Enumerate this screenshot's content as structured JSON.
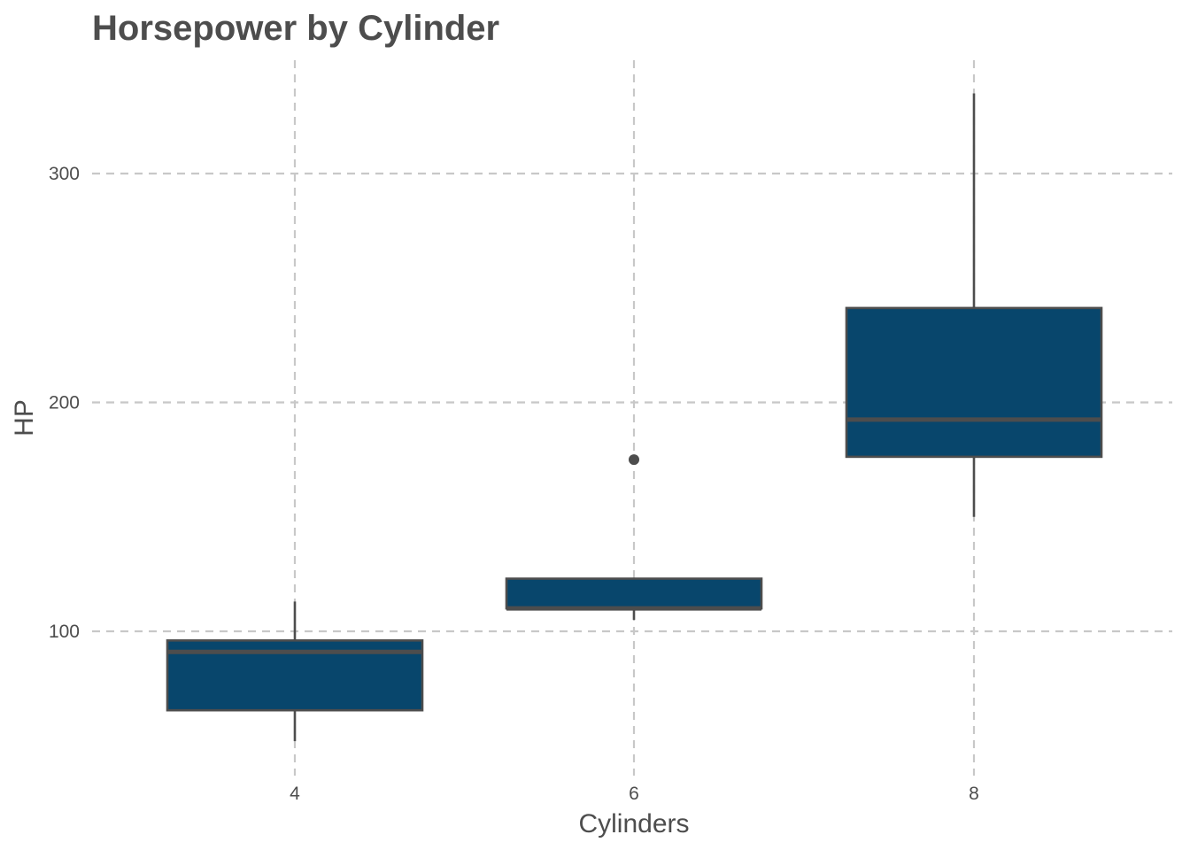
{
  "chart_data": {
    "type": "boxplot",
    "title": "Horsepower by Cylinder",
    "xlabel": "Cylinders",
    "ylabel": "HP",
    "categories": [
      "4",
      "6",
      "8"
    ],
    "boxes": [
      {
        "category": "4",
        "whisker_low": 52,
        "q1": 65.5,
        "median": 91,
        "q3": 96,
        "whisker_high": 113,
        "outliers": []
      },
      {
        "category": "6",
        "whisker_low": 105,
        "q1": 110,
        "median": 110,
        "q3": 123,
        "whisker_high": 123,
        "outliers": [
          175
        ]
      },
      {
        "category": "8",
        "whisker_low": 150,
        "q1": 176.25,
        "median": 192.5,
        "q3": 241.25,
        "whisker_high": 335,
        "outliers": []
      }
    ],
    "yticks": [
      100,
      200,
      300
    ],
    "ylim": [
      38,
      352
    ],
    "grid": true,
    "fill_color": "#08466c",
    "line_color": "#4d4d4d",
    "grid_color": "#c8c8c8"
  }
}
